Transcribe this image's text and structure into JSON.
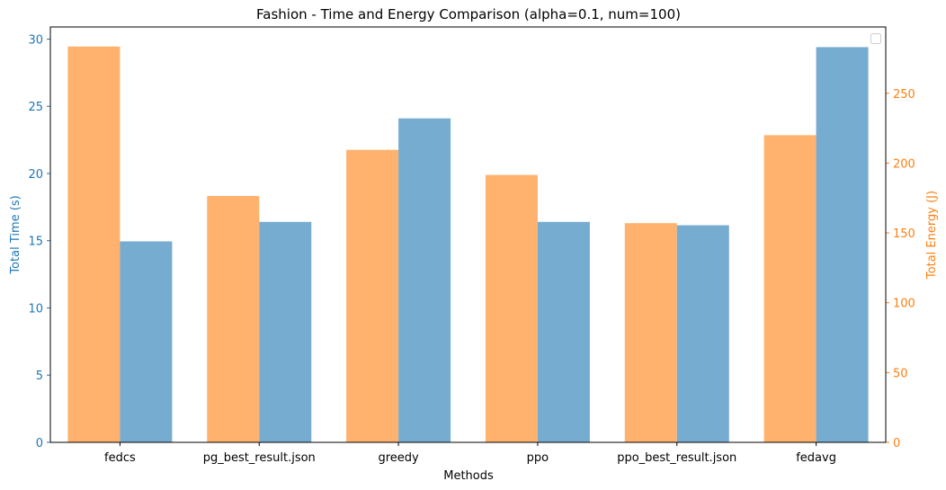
{
  "chart_data": {
    "type": "bar",
    "title": "Fashion - Time and Energy Comparison (alpha=0.1, num=100)",
    "xlabel": "Methods",
    "categories": [
      "fedcs",
      "pg_best_result.json",
      "greedy",
      "ppo",
      "ppo_best_result.json",
      "fedavg"
    ],
    "series": [
      {
        "axis": "right",
        "color": "#ffb26e",
        "values": [
          283.5,
          176.5,
          209.5,
          191.5,
          157.0,
          220.0
        ]
      },
      {
        "axis": "left",
        "color": "#77acd1",
        "values": [
          14.95,
          16.4,
          24.1,
          16.4,
          16.15,
          29.4
        ]
      }
    ],
    "y_left": {
      "label": "Total Time (s)",
      "color": "#1f77b4",
      "ylim": [
        0,
        30.9
      ],
      "ticks": [
        0,
        5,
        10,
        15,
        20,
        25,
        30
      ]
    },
    "y_right": {
      "label": "Total Energy (J)",
      "color": "#ff7f0e",
      "ylim": [
        0,
        297.5
      ],
      "ticks": [
        0,
        50,
        100,
        150,
        200,
        250
      ]
    },
    "legend": {
      "position": "upper-right",
      "entries": []
    },
    "grid": false
  }
}
